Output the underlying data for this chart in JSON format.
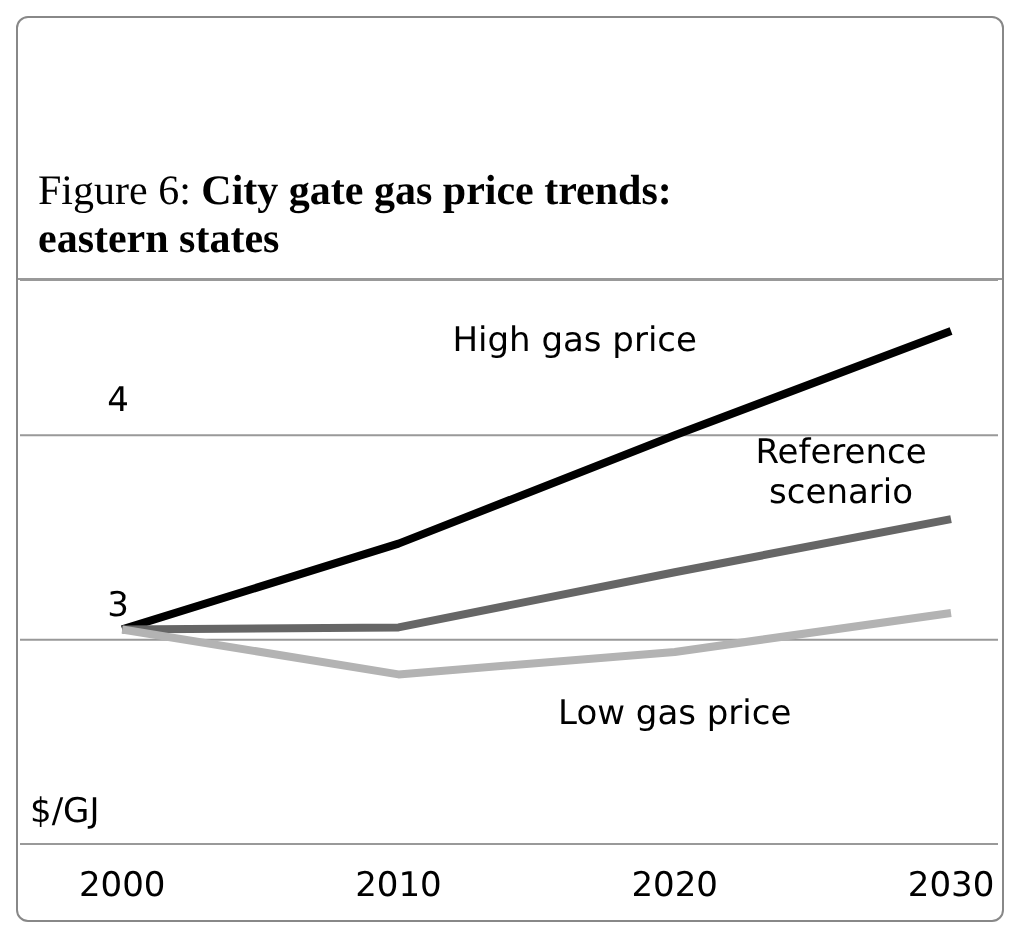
{
  "chart_data": {
    "type": "line",
    "title": "Figure 6: City gate gas price trends: eastern states",
    "ylabel": "$/GJ",
    "x": [
      2000,
      2010,
      2020,
      2030
    ],
    "series": [
      {
        "name": "High gas price",
        "color": "#000000",
        "values": [
          3.05,
          3.47,
          4.0,
          4.51
        ]
      },
      {
        "name": "Reference scenario",
        "color": "#666666",
        "values": [
          3.05,
          3.06,
          3.33,
          3.59
        ]
      },
      {
        "name": "Low gas price",
        "color": "#b3b3b3",
        "values": [
          3.05,
          2.83,
          2.94,
          3.13
        ]
      }
    ],
    "xlim": [
      1996.3,
      2031.7
    ],
    "xticks": [
      2000,
      2010,
      2020,
      2030
    ],
    "ylim": [
      2,
      4.76
    ],
    "yticks": [
      {
        "value": 2,
        "label": null
      },
      3,
      4
    ],
    "grid": "y",
    "marker": "none",
    "line_style": "solid"
  }
}
